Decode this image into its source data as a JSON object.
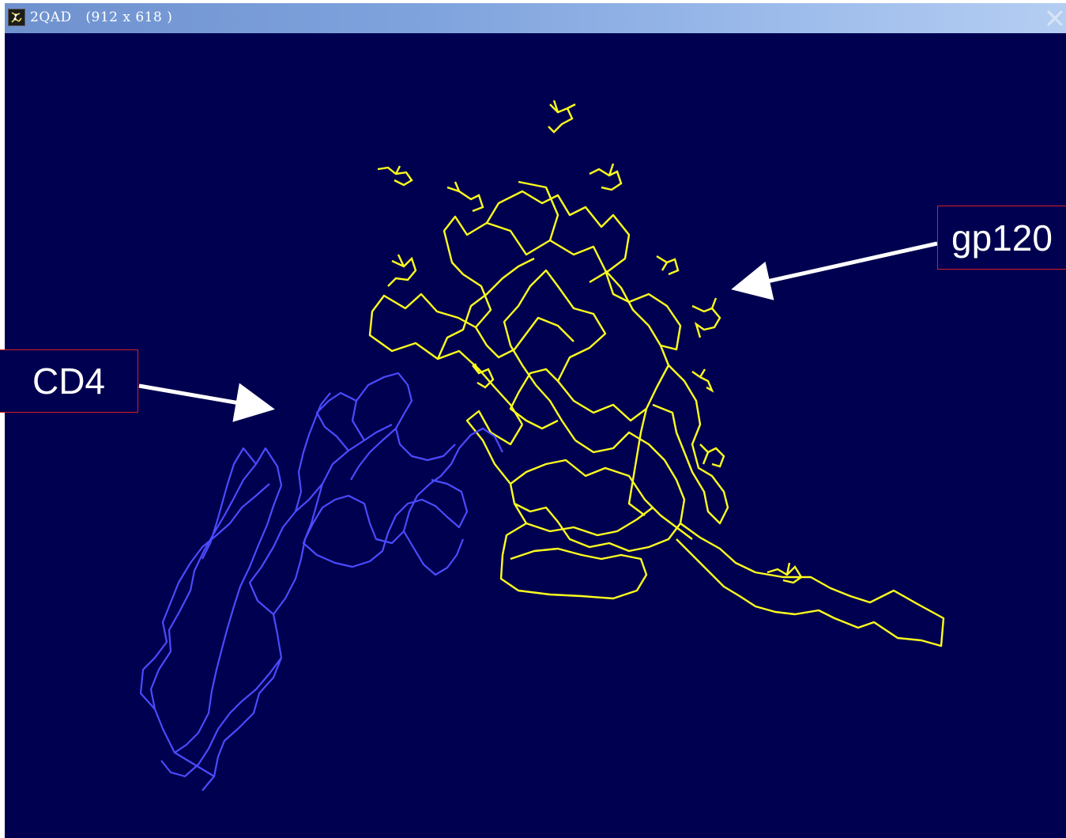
{
  "window": {
    "title": "2QAD   (912 x 618 )",
    "icon": "molecule-app-icon",
    "close_icon": "close-icon"
  },
  "viewer": {
    "background_color": "#000050",
    "chains": [
      {
        "name": "gp120",
        "color": "#ffff1e"
      },
      {
        "name": "CD4",
        "color": "#4b4bff"
      }
    ]
  },
  "annotations": {
    "gp120": {
      "label": "gp120",
      "border_color": "#d22020",
      "arrow_color": "#ffffff"
    },
    "cd4": {
      "label": "CD4",
      "border_color": "#d22020",
      "arrow_color": "#ffffff"
    }
  }
}
